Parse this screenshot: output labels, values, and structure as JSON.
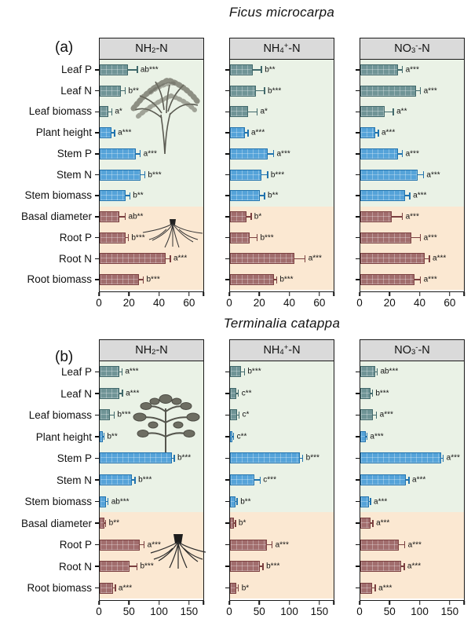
{
  "colors": {
    "leaf_fill": "#6F9496",
    "leaf_border": "#41696B",
    "stem_fill": "#55A3D9",
    "stem_border": "#2173AE",
    "root_fill": "#A16D6D",
    "root_border": "#7B4040",
    "shoot_bg": "#EAF2E6",
    "root_bg": "#FBE8D2",
    "header_bg": "#DADADA",
    "frame": "#1A1A1A"
  },
  "illustrations": [
    "ficus-canopy-sketch",
    "ficus-roots-sketch",
    "terminalia-canopy-sketch",
    "terminalia-roots-sketch"
  ],
  "chart_data": {
    "type": "bar",
    "orientation": "horizontal",
    "categories": [
      "Leaf P",
      "Leaf N",
      "Leaf biomass",
      "Plant height",
      "Stem P",
      "Stem N",
      "Stem biomass",
      "Basal diameter",
      "Root P",
      "Root N",
      "Root biomass"
    ],
    "category_groups": [
      "leaf",
      "leaf",
      "leaf",
      "stem",
      "stem",
      "stem",
      "stem",
      "root",
      "root",
      "root",
      "root"
    ],
    "shoot_rows": 7,
    "panels": [
      {
        "letter": "(a)",
        "species": "Ficus microcarpa",
        "xlim": [
          0,
          70
        ],
        "xticks": [
          0,
          20,
          40,
          60
        ],
        "charts": [
          {
            "treatment": "NH2-N",
            "title_segments": [
              [
                "NH"
              ],
              [
                "2",
                "sub"
              ],
              [
                "-N"
              ]
            ],
            "values": [
              19,
              14,
              6,
              8,
              24,
              27,
              17,
              13,
              17,
              44,
              26
            ],
            "errors": [
              6,
              3,
              2,
              2,
              3,
              3,
              3,
              4,
              2,
              3,
              3
            ],
            "sig_labels": [
              "ab***",
              "b**",
              "a*",
              "a***",
              "a***",
              "b***",
              "b**",
              "ab**",
              "b***",
              "a***",
              "b***"
            ]
          },
          {
            "treatment": "NH4+-N",
            "title_segments": [
              [
                "NH"
              ],
              [
                "4",
                "sub"
              ],
              [
                "+",
                "sup"
              ],
              [
                "-N"
              ]
            ],
            "values": [
              15,
              17,
              12,
              10,
              25,
              21,
              20,
              11,
              13,
              43,
              29
            ],
            "errors": [
              6,
              6,
              6,
              2,
              4,
              4,
              3,
              3,
              5,
              7,
              2
            ],
            "sig_labels": [
              "b**",
              "b***",
              "a*",
              "a***",
              "a***",
              "b***",
              "b**",
              "b*",
              "b***",
              "a***",
              "b***"
            ]
          },
          {
            "treatment": "NO3--N",
            "title_segments": [
              [
                "NO"
              ],
              [
                "3",
                "sub"
              ],
              [
                "-",
                "sup"
              ],
              [
                "-N"
              ]
            ],
            "values": [
              25,
              37,
              16,
              10,
              25,
              38,
              30,
              21,
              34,
              43,
              36
            ],
            "errors": [
              3,
              3,
              6,
              2,
              3,
              4,
              3,
              7,
              6,
              3,
              4
            ],
            "sig_labels": [
              "a***",
              "a***",
              "a**",
              "a***",
              "a***",
              "a***",
              "a***",
              "a***",
              "a***",
              "a***",
              "a***"
            ]
          }
        ]
      },
      {
        "letter": "(b)",
        "species": "Terminalia catappa",
        "xlim": [
          0,
          175
        ],
        "xticks": [
          0,
          50,
          100,
          150
        ],
        "charts": [
          {
            "treatment": "NH2-N",
            "title_segments": [
              [
                "NH"
              ],
              [
                "2",
                "sub"
              ],
              [
                "-N"
              ]
            ],
            "values": [
              32,
              33,
              17,
              5,
              120,
              54,
              11,
              8,
              66,
              50,
              22
            ],
            "errors": [
              5,
              5,
              7,
              2,
              4,
              5,
              3,
              2,
              8,
              12,
              4
            ],
            "sig_labels": [
              "a***",
              "a***",
              "b***",
              "b**",
              "b***",
              "b***",
              "ab***",
              "b**",
              "a***",
              "b***",
              "a***"
            ]
          },
          {
            "treatment": "NH4+-N",
            "title_segments": [
              [
                "NH"
              ],
              [
                "4",
                "sub"
              ],
              [
                "+",
                "sup"
              ],
              [
                "-N"
              ]
            ],
            "values": [
              18,
              11,
              12,
              4,
              116,
              41,
              9,
              7,
              62,
              49,
              11
            ],
            "errors": [
              6,
              3,
              3,
              2,
              5,
              9,
              3,
              2,
              8,
              6,
              3
            ],
            "sig_labels": [
              "b***",
              "c**",
              "c*",
              "c**",
              "b***",
              "c***",
              "b**",
              "b*",
              "a***",
              "b***",
              "b*"
            ]
          },
          {
            "treatment": "NO3--N",
            "title_segments": [
              [
                "NO"
              ],
              [
                "3",
                "sub"
              ],
              [
                "-",
                "sup"
              ],
              [
                "-N"
              ]
            ],
            "values": [
              25,
              17,
              21,
              9,
              134,
              76,
              14,
              17,
              64,
              68,
              20
            ],
            "errors": [
              3,
              3,
              6,
              2,
              4,
              5,
              3,
              4,
              10,
              5,
              5
            ],
            "sig_labels": [
              "ab***",
              "b***",
              "a***",
              "a***",
              "a***",
              "a***",
              "a***",
              "a***",
              "a***",
              "a***",
              "a***"
            ]
          }
        ]
      }
    ]
  }
}
